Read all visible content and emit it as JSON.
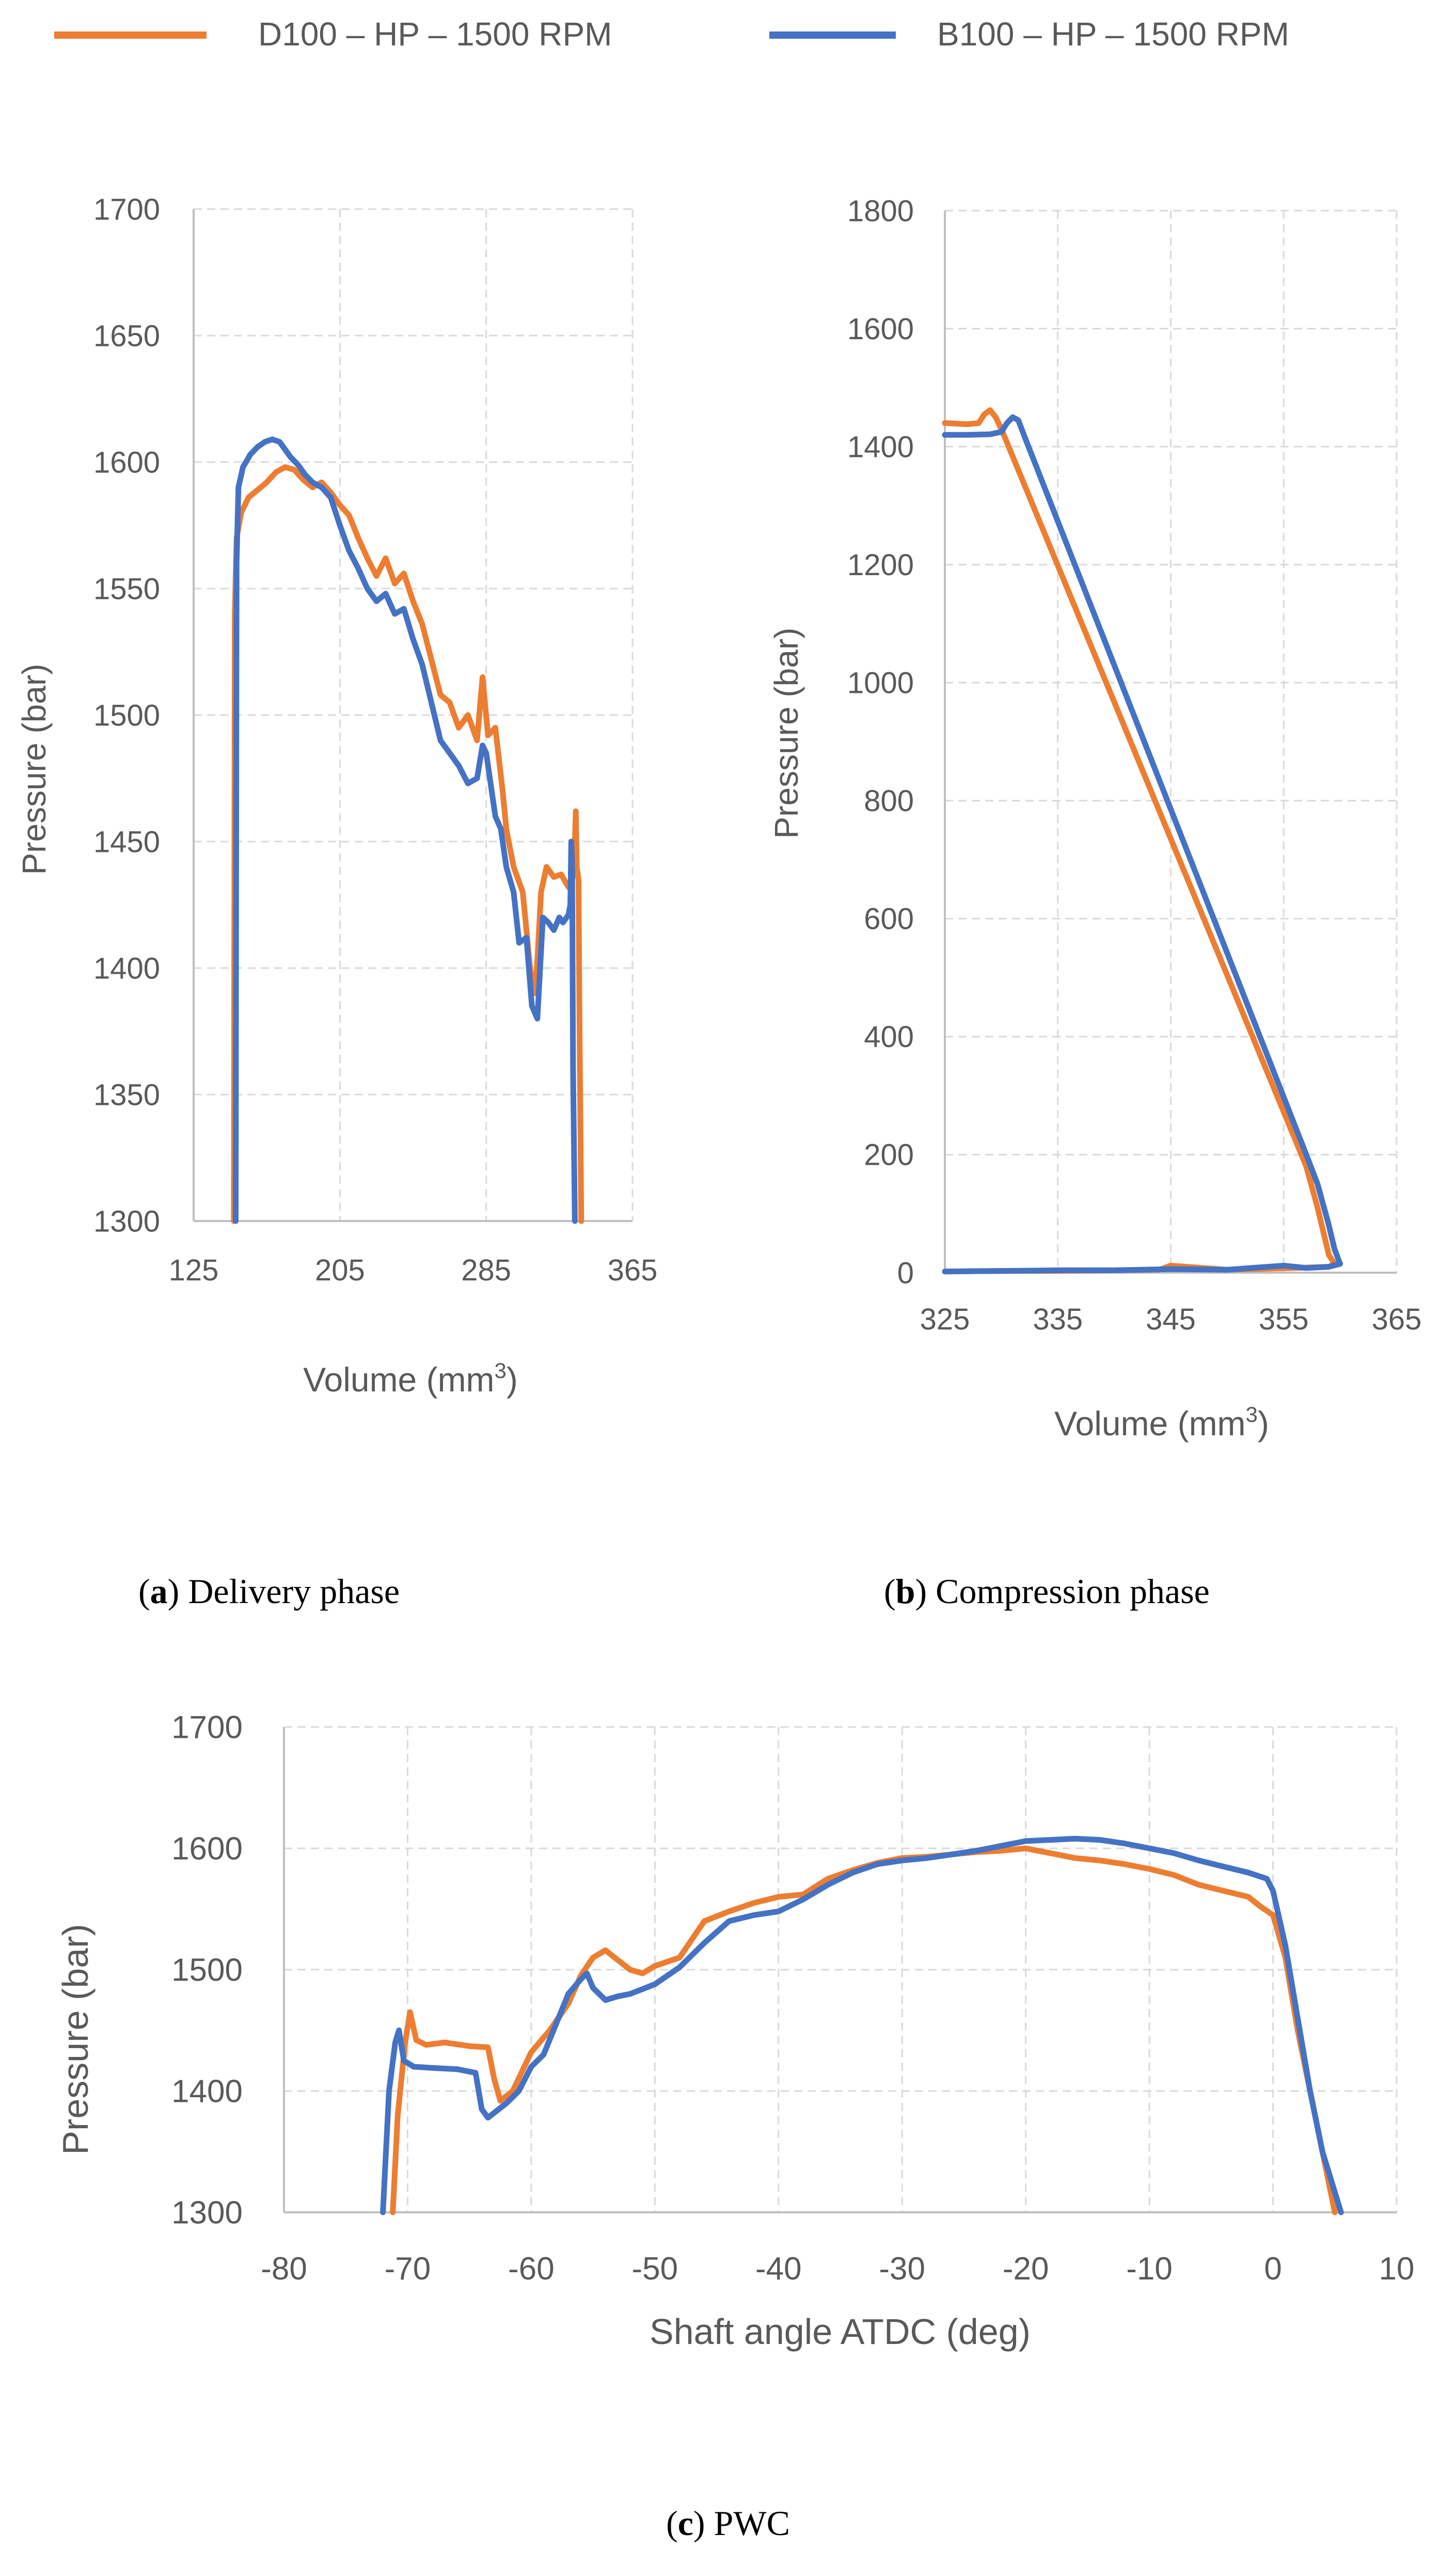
{
  "legend": {
    "position": "top",
    "entries": [
      {
        "label": "D100 – HP – 1500 RPM",
        "color": "#ED7D31"
      },
      {
        "label": "B100 – HP – 1500 RPM",
        "color": "#4472C4"
      }
    ]
  },
  "captions": {
    "a": {
      "letter": "a",
      "text": "Delivery phase"
    },
    "b": {
      "letter": "b",
      "text": "Compression phase"
    },
    "c": {
      "letter": "c",
      "text": "PWC"
    }
  },
  "chart_data": [
    {
      "id": "a",
      "type": "line",
      "title": "",
      "xlabel": "Volume (mm",
      "xlabel_sup": "3",
      "xlabel_end": ")",
      "ylabel": "Pressure (bar)",
      "xlim": [
        125,
        365
      ],
      "ylim": [
        1300,
        1700
      ],
      "xticks": [
        125,
        205,
        285,
        365
      ],
      "yticks": [
        1300,
        1350,
        1400,
        1450,
        1500,
        1550,
        1600,
        1650,
        1700
      ],
      "grid": true,
      "series": [
        {
          "name": "D100 – HP – 1500 RPM",
          "color": "#ED7D31",
          "x": [
            147,
            147.5,
            148.5,
            151,
            155,
            160,
            165,
            170,
            175,
            180,
            185,
            190,
            195,
            200,
            205,
            210,
            215,
            220,
            225,
            230,
            235,
            240,
            245,
            250,
            255,
            260,
            265,
            270,
            275,
            280,
            283,
            286,
            290,
            294,
            296,
            300,
            305,
            309,
            312,
            315,
            318,
            322,
            326,
            330,
            333,
            334,
            334.5,
            335.5,
            336,
            337
          ],
          "y": [
            1300,
            1540,
            1570,
            1580,
            1586,
            1589,
            1592,
            1596,
            1598,
            1597,
            1593,
            1590,
            1592,
            1588,
            1583,
            1579,
            1570,
            1562,
            1555,
            1562,
            1552,
            1556,
            1545,
            1536,
            1522,
            1508,
            1505,
            1495,
            1500,
            1490,
            1515,
            1492,
            1495,
            1470,
            1455,
            1440,
            1430,
            1400,
            1390,
            1430,
            1440,
            1436,
            1437,
            1432,
            1437,
            1462,
            1440,
            1435,
            1380,
            1300
          ]
        },
        {
          "name": "B100 – HP – 1500 RPM",
          "color": "#4472C4",
          "x": [
            148,
            148.5,
            149.5,
            152,
            156,
            160,
            164,
            168,
            172,
            175,
            178,
            182,
            186,
            190,
            195,
            200,
            205,
            210,
            215,
            220,
            225,
            230,
            235,
            240,
            245,
            250,
            255,
            260,
            265,
            270,
            275,
            280,
            283,
            285,
            288,
            290,
            293,
            296,
            300,
            303,
            307,
            310,
            313,
            316,
            319,
            322,
            325,
            327,
            329,
            330,
            331,
            331.5,
            332,
            332.5,
            333.5
          ],
          "y": [
            1300,
            1560,
            1590,
            1598,
            1603,
            1606,
            1608,
            1609,
            1608,
            1605,
            1602,
            1599,
            1595,
            1592,
            1590,
            1586,
            1575,
            1565,
            1558,
            1550,
            1545,
            1548,
            1540,
            1542,
            1530,
            1520,
            1505,
            1490,
            1485,
            1480,
            1473,
            1475,
            1488,
            1485,
            1470,
            1460,
            1455,
            1440,
            1430,
            1410,
            1412,
            1385,
            1380,
            1420,
            1418,
            1415,
            1420,
            1418,
            1420,
            1421,
            1425,
            1450,
            1440,
            1360,
            1300
          ]
        }
      ]
    },
    {
      "id": "b",
      "type": "line",
      "title": "",
      "xlabel": "Volume (mm",
      "xlabel_sup": "3",
      "xlabel_end": ")",
      "ylabel": "Pressure (bar)",
      "xlim": [
        325,
        365
      ],
      "ylim": [
        0,
        1800
      ],
      "xticks": [
        325,
        335,
        345,
        355,
        365
      ],
      "yticks": [
        0,
        200,
        400,
        600,
        800,
        1000,
        1200,
        1400,
        1600,
        1800
      ],
      "grid": true,
      "series": [
        {
          "name": "D100 – HP – 1500 RPM",
          "color": "#ED7D31",
          "x": [
            325,
            327,
            328,
            328.5,
            329,
            329.5,
            330,
            357,
            358,
            358.5,
            359,
            359.5,
            359,
            356,
            350,
            345,
            344,
            340,
            335,
            330,
            325
          ],
          "y": [
            1440,
            1438,
            1440,
            1455,
            1462,
            1450,
            1430,
            180,
            110,
            70,
            30,
            15,
            10,
            8,
            5,
            12,
            5,
            4,
            3,
            3,
            2
          ]
        },
        {
          "name": "B100 – HP – 1500 RPM",
          "color": "#4472C4",
          "x": [
            325,
            327,
            329,
            330,
            330.5,
            331,
            331.5,
            332,
            357,
            358,
            359,
            359.5,
            360,
            359,
            357,
            355,
            350,
            345,
            340,
            335,
            330,
            325
          ],
          "y": [
            1420,
            1420,
            1421,
            1425,
            1440,
            1450,
            1445,
            1420,
            200,
            150,
            80,
            40,
            15,
            10,
            8,
            12,
            5,
            6,
            4,
            4,
            3,
            2
          ]
        }
      ]
    },
    {
      "id": "c",
      "type": "line",
      "title": "",
      "xlabel": "Shaft angle ATDC (deg)",
      "ylabel": "Pressure (bar)",
      "xlim": [
        -80,
        10
      ],
      "ylim": [
        1300,
        1700
      ],
      "xticks": [
        -80,
        -70,
        -60,
        -50,
        -40,
        -30,
        -20,
        -10,
        0,
        10
      ],
      "yticks": [
        1300,
        1400,
        1500,
        1600,
        1700
      ],
      "grid": true,
      "series": [
        {
          "name": "D100 – HP – 1500 RPM",
          "color": "#ED7D31",
          "x": [
            -71.2,
            -70.8,
            -70.2,
            -69.8,
            -69.3,
            -68.5,
            -67,
            -65,
            -63.5,
            -63,
            -62.5,
            -61.5,
            -60,
            -58.5,
            -57,
            -56,
            -55,
            -54,
            -53,
            -52,
            -51,
            -50,
            -48,
            -46,
            -44,
            -42,
            -40,
            -38,
            -36,
            -34,
            -32,
            -30,
            -28,
            -26,
            -24,
            -22,
            -20,
            -18,
            -16,
            -14,
            -12,
            -10,
            -8,
            -6,
            -4,
            -2,
            -1,
            0,
            1,
            2,
            3,
            4,
            5
          ],
          "y": [
            1300,
            1380,
            1440,
            1465,
            1442,
            1438,
            1440,
            1437,
            1436,
            1410,
            1392,
            1400,
            1432,
            1450,
            1472,
            1495,
            1510,
            1516,
            1508,
            1500,
            1497,
            1503,
            1510,
            1540,
            1548,
            1555,
            1560,
            1562,
            1575,
            1582,
            1588,
            1592,
            1593,
            1595,
            1597,
            1598,
            1600,
            1596,
            1592,
            1590,
            1587,
            1583,
            1578,
            1570,
            1565,
            1560,
            1552,
            1545,
            1510,
            1450,
            1400,
            1350,
            1300
          ]
        },
        {
          "name": "B100 – HP – 1500 RPM",
          "color": "#4472C4",
          "x": [
            -72,
            -71.5,
            -71,
            -70.7,
            -70.3,
            -69.5,
            -68,
            -66,
            -64.5,
            -64,
            -63.5,
            -62,
            -61,
            -60,
            -59,
            -58,
            -57,
            -56,
            -55.5,
            -55,
            -54,
            -53,
            -52,
            -50,
            -48,
            -46,
            -44,
            -42,
            -40,
            -38,
            -36,
            -34,
            -32,
            -30,
            -28,
            -26,
            -24,
            -22,
            -20,
            -18,
            -16,
            -14,
            -12,
            -10,
            -8,
            -6,
            -4,
            -2,
            -0.5,
            0,
            1,
            2,
            3,
            4,
            5.5
          ],
          "y": [
            1300,
            1400,
            1440,
            1450,
            1425,
            1420,
            1419,
            1418,
            1415,
            1385,
            1378,
            1390,
            1400,
            1420,
            1430,
            1455,
            1480,
            1492,
            1497,
            1485,
            1475,
            1478,
            1480,
            1488,
            1502,
            1522,
            1540,
            1545,
            1548,
            1558,
            1570,
            1580,
            1587,
            1590,
            1592,
            1595,
            1598,
            1602,
            1606,
            1607,
            1608,
            1607,
            1604,
            1600,
            1596,
            1590,
            1585,
            1580,
            1575,
            1565,
            1520,
            1460,
            1400,
            1350,
            1300
          ]
        }
      ]
    }
  ]
}
